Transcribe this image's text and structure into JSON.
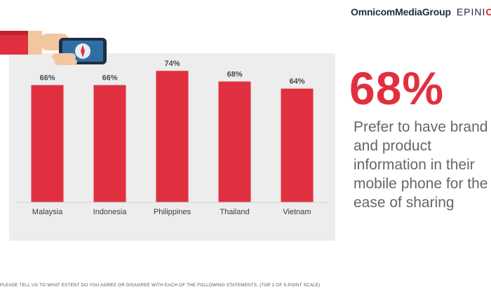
{
  "header": {
    "brand_primary": "OmnicomMediaGroup",
    "brand_secondary_prefix": "EPINI",
    "brand_secondary_accent": "O"
  },
  "stat": {
    "value": "68%",
    "description": "Prefer to have brand and product information in their mobile phone for the ease of sharing"
  },
  "footnote": "PLEASE TELL US TO WHAT EXTENT DO YOU AGREE OR DISAGREE WITH EACH OF THE FOLLOWING STATEMENTS. (TOP 2 OF 5-POINT SCALE)",
  "illustration": {
    "icon": "hand-holding-phone-compass-icon",
    "sleeve_color": "#e0303f",
    "screen_color": "#2f6ea3"
  },
  "colors": {
    "accent": "#e0303f",
    "panel": "#ededed",
    "text": "#666666"
  },
  "chart_data": {
    "type": "bar",
    "categories": [
      "Malaysia",
      "Indonesia",
      "Philippines",
      "Thailand",
      "Vietnam"
    ],
    "values": [
      66,
      66,
      74,
      68,
      64
    ],
    "value_labels": [
      "66%",
      "66%",
      "74%",
      "68%",
      "64%"
    ],
    "unit": "%",
    "ylim": [
      0,
      80
    ],
    "grid": false,
    "legend": "none",
    "bar_color": "#e0303f"
  }
}
